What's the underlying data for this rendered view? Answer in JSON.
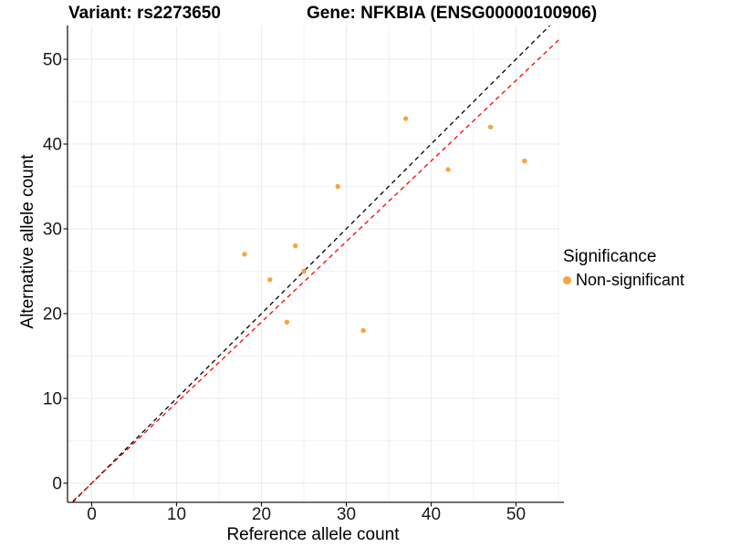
{
  "header": {
    "variant_title": "Variant: rs2273650",
    "gene_title": "Gene: NFKBIA (ENSG00000100906)"
  },
  "legend": {
    "title": "Significance",
    "items": [
      {
        "label": "Non-significant",
        "color": "#F8A33C"
      }
    ]
  },
  "chart_data": {
    "type": "scatter",
    "title": "Variant: rs2273650 — Gene: NFKBIA (ENSG00000100906)",
    "xlabel": "Reference allele count",
    "ylabel": "Alternative allele count",
    "xlim": [
      -2.85,
      55.1
    ],
    "ylim": [
      -2.26,
      54.0
    ],
    "x_ticks": [
      0,
      10,
      20,
      30,
      40,
      50
    ],
    "y_ticks": [
      0,
      10,
      20,
      30,
      40,
      50
    ],
    "x_minor_ticks": [
      5,
      15,
      25,
      35,
      45,
      55
    ],
    "y_minor_ticks": [
      5,
      15,
      25,
      35,
      45
    ],
    "grid": true,
    "legend_position": "right",
    "series": [
      {
        "name": "Non-significant",
        "color": "#F8A33C",
        "points": [
          [
            18,
            27
          ],
          [
            21,
            24
          ],
          [
            23,
            19
          ],
          [
            24,
            28
          ],
          [
            25,
            25
          ],
          [
            29,
            35
          ],
          [
            32,
            18
          ],
          [
            37,
            43
          ],
          [
            42,
            37
          ],
          [
            47,
            42
          ],
          [
            51,
            38
          ]
        ]
      }
    ],
    "reference_lines": [
      {
        "name": "identity-line",
        "slope": 1,
        "intercept": 0,
        "color": "#000000",
        "style": "dashed"
      },
      {
        "name": "allelic-ratio-line",
        "slope": 0.95,
        "intercept": 0,
        "color": "#FF0000",
        "style": "dashed"
      }
    ],
    "colors": {
      "point": "#F8A33C",
      "identity_line": "#000000",
      "ratio_line": "#FF0000",
      "major_grid": "#EBEBEB",
      "minor_grid": "#F2F2F2",
      "axis": "#1A1A1A"
    }
  }
}
